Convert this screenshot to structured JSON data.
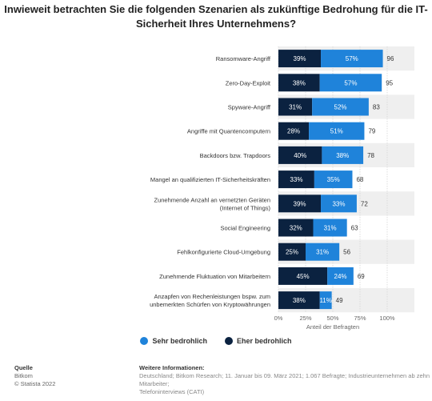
{
  "title_lines": [
    "Inwieweit betrachten Sie die folgenden Szenarien als zukünftige Bedrohung für die IT-",
    "Sicherheit Ihres Unternehmens?"
  ],
  "legend": {
    "sehr_label": "Sehr bedrohlich",
    "eher_label": "Eher bedrohlich"
  },
  "footer": {
    "source_head": "Quelle",
    "source_name": "Bitkom",
    "copyright": "© Statista 2022",
    "info_head": "Weitere Informationen:",
    "info_text_1": "Deutschland; Bitkom Research; 11. Januar bis 09. März 2021; 1.067 Befragte; Industrieunternehmen ab zehn Mitarbeiter;",
    "info_text_2": "Telefoninterviews (CATI)"
  },
  "colors": {
    "eher": "#0b2240",
    "sehr": "#1f83da",
    "band": "#efefef",
    "grid": "#d6d6d6"
  },
  "chart_data": {
    "type": "bar",
    "orientation": "horizontal",
    "stacked": true,
    "title": "Inwieweit betrachten Sie die folgenden Szenarien als zukünftige Bedrohung für die IT-Sicherheit Ihres Unternehmens?",
    "xlabel": "Anteil der Befragten",
    "xlim": [
      0,
      100
    ],
    "xticks": [
      "0%",
      "25%",
      "50%",
      "75%",
      "100%"
    ],
    "categories": [
      [
        "Ransomware-Angriff"
      ],
      [
        "Zero-Day-Exploit"
      ],
      [
        "Spyware-Angriff"
      ],
      [
        "Angriffe mit Quantencomputern"
      ],
      [
        "Backdoors bzw. Trapdoors"
      ],
      [
        "Mangel an qualifizierten IT-Sicherheitskräften"
      ],
      [
        "Zunehmende Anzahl an vernetzten Geräten",
        "(Internet of Things)"
      ],
      [
        "Social Engineering"
      ],
      [
        "Fehlkonfigurierte Cloud-Umgebung"
      ],
      [
        "Zunehmende Fluktuation von Mitarbeitern"
      ],
      [
        "Anzapfen von Rechenleistungen bspw. zum",
        "unbemerkten Schürfen von Kryptowährungen"
      ]
    ],
    "series": [
      {
        "name": "Eher bedrohlich",
        "values": [
          39,
          38,
          31,
          28,
          40,
          33,
          39,
          32,
          25,
          45,
          38
        ]
      },
      {
        "name": "Sehr bedrohlich",
        "values": [
          57,
          57,
          52,
          51,
          38,
          35,
          33,
          31,
          31,
          24,
          11
        ]
      }
    ],
    "totals": [
      96,
      95,
      83,
      79,
      78,
      68,
      72,
      63,
      56,
      69,
      49
    ],
    "legend_position": "bottom"
  }
}
